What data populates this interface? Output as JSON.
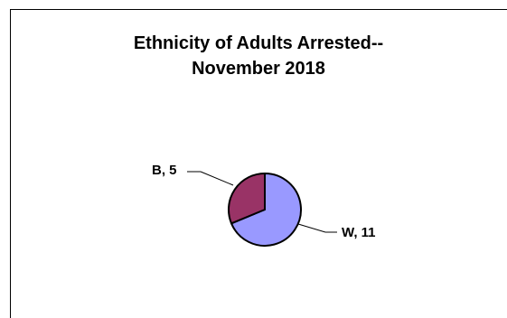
{
  "chart_data": {
    "type": "pie",
    "title_line1": "Ethnicity of Adults Arrested--",
    "title_line2": "November 2018",
    "slices": [
      {
        "label": "W",
        "value": 11,
        "color": "#9999ff",
        "data_label": "W, 11"
      },
      {
        "label": "B",
        "value": 5,
        "color": "#993366",
        "data_label": "B, 5"
      }
    ]
  }
}
